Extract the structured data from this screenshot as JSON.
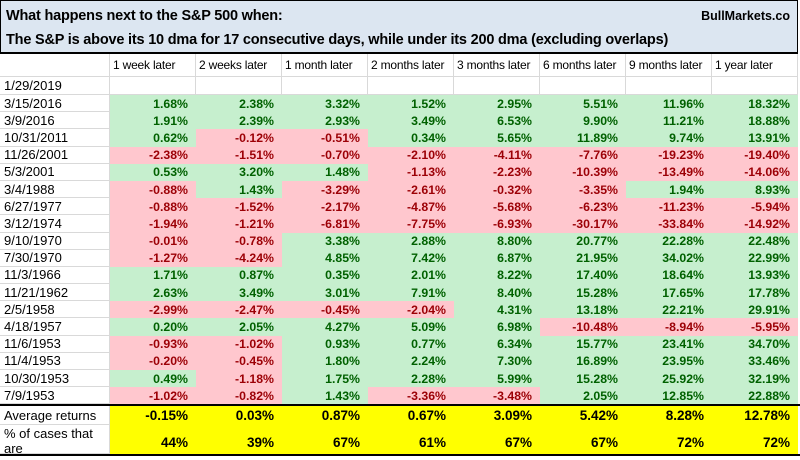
{
  "title": {
    "line1": "What happens next to the S&P 500 when:",
    "line2": "The S&P is above its 10 dma for 17 consecutive days, while under its 200 dma (excluding overlaps)",
    "brand": "BullMarkets.co"
  },
  "table": {
    "columns": [
      "1 week later",
      "2 weeks later",
      "1 month later",
      "2 months later",
      "3 months later",
      "6 months later",
      "9 months later",
      "1 year later"
    ],
    "rows": [
      {
        "date": "1/29/2019",
        "values": [
          "",
          "",
          "",
          "",
          "",
          "",
          "",
          ""
        ]
      },
      {
        "date": "3/15/2016",
        "values": [
          "1.68%",
          "2.38%",
          "3.32%",
          "1.52%",
          "2.95%",
          "5.51%",
          "11.96%",
          "18.32%"
        ]
      },
      {
        "date": "3/9/2016",
        "values": [
          "1.91%",
          "2.39%",
          "2.93%",
          "3.49%",
          "6.53%",
          "9.90%",
          "11.21%",
          "18.88%"
        ]
      },
      {
        "date": "10/31/2011",
        "values": [
          "0.62%",
          "-0.12%",
          "-0.51%",
          "0.34%",
          "5.65%",
          "11.89%",
          "9.74%",
          "13.91%"
        ]
      },
      {
        "date": "11/26/2001",
        "values": [
          "-2.38%",
          "-1.51%",
          "-0.70%",
          "-2.10%",
          "-4.11%",
          "-7.76%",
          "-19.23%",
          "-19.40%"
        ]
      },
      {
        "date": "5/3/2001",
        "values": [
          "0.53%",
          "3.20%",
          "1.48%",
          "-1.13%",
          "-2.23%",
          "-10.39%",
          "-13.49%",
          "-14.06%"
        ]
      },
      {
        "date": "3/4/1988",
        "values": [
          "-0.88%",
          "1.43%",
          "-3.29%",
          "-2.61%",
          "-0.32%",
          "-3.35%",
          "1.94%",
          "8.93%"
        ]
      },
      {
        "date": "6/27/1977",
        "values": [
          "-0.88%",
          "-1.52%",
          "-2.17%",
          "-4.87%",
          "-5.68%",
          "-6.23%",
          "-11.23%",
          "-5.94%"
        ]
      },
      {
        "date": "3/12/1974",
        "values": [
          "-1.94%",
          "-1.21%",
          "-6.81%",
          "-7.75%",
          "-6.93%",
          "-30.17%",
          "-33.84%",
          "-14.92%"
        ]
      },
      {
        "date": "9/10/1970",
        "values": [
          "-0.01%",
          "-0.78%",
          "3.38%",
          "2.88%",
          "8.80%",
          "20.77%",
          "22.28%",
          "22.48%"
        ]
      },
      {
        "date": "7/30/1970",
        "values": [
          "-1.27%",
          "-4.24%",
          "4.85%",
          "7.42%",
          "6.87%",
          "21.95%",
          "34.02%",
          "22.99%"
        ]
      },
      {
        "date": "11/3/1966",
        "values": [
          "1.71%",
          "0.87%",
          "0.35%",
          "2.01%",
          "8.22%",
          "17.40%",
          "18.64%",
          "13.93%"
        ]
      },
      {
        "date": "11/21/1962",
        "values": [
          "2.63%",
          "3.49%",
          "3.01%",
          "7.91%",
          "8.40%",
          "15.28%",
          "17.65%",
          "17.78%"
        ]
      },
      {
        "date": "2/5/1958",
        "values": [
          "-2.99%",
          "-2.47%",
          "-0.45%",
          "-2.04%",
          "4.31%",
          "13.18%",
          "22.21%",
          "29.91%"
        ]
      },
      {
        "date": "4/18/1957",
        "values": [
          "0.20%",
          "2.05%",
          "4.27%",
          "5.09%",
          "6.98%",
          "-10.48%",
          "-8.94%",
          "-5.95%"
        ]
      },
      {
        "date": "11/6/1953",
        "values": [
          "-0.93%",
          "-1.02%",
          "0.93%",
          "0.77%",
          "6.34%",
          "15.77%",
          "23.41%",
          "34.70%"
        ]
      },
      {
        "date": "11/4/1953",
        "values": [
          "-0.20%",
          "-0.45%",
          "1.80%",
          "2.24%",
          "7.30%",
          "16.89%",
          "23.95%",
          "33.46%"
        ]
      },
      {
        "date": "10/30/1953",
        "values": [
          "0.49%",
          "-1.18%",
          "1.75%",
          "2.28%",
          "5.99%",
          "15.28%",
          "25.92%",
          "32.19%"
        ]
      },
      {
        "date": "7/9/1953",
        "values": [
          "-1.02%",
          "-0.82%",
          "1.43%",
          "-3.36%",
          "-3.48%",
          "2.05%",
          "12.85%",
          "22.88%"
        ]
      }
    ],
    "summary": {
      "average_label": "Average returns",
      "average_values": [
        "-0.15%",
        "0.03%",
        "0.87%",
        "0.67%",
        "3.09%",
        "5.42%",
        "8.28%",
        "12.78%"
      ],
      "positive_label": "% of cases that are positive",
      "positive_label_lines": [
        "% of cases that are",
        "positive"
      ],
      "positive_values": [
        "44%",
        "39%",
        "67%",
        "61%",
        "67%",
        "67%",
        "72%",
        "72%"
      ]
    }
  },
  "colors": {
    "title_bg": "#dce6f1",
    "positive_bg": "#c6efce",
    "positive_text": "#006100",
    "negative_bg": "#ffc7ce",
    "negative_text": "#9c0006",
    "summary_bg": "#ffff00",
    "gridline": "#d9d9d9"
  }
}
